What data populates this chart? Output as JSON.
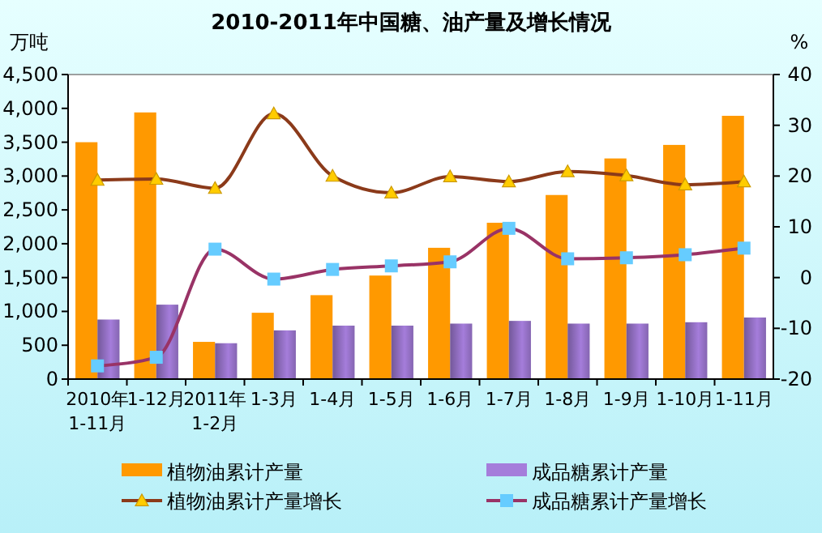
{
  "chart_data": {
    "type": "bar",
    "title": "2010-2011年中国糖、油产量及增长情况",
    "ylabel": "万吨",
    "y2label": "%",
    "categories": [
      "2010年1-11月",
      "1-12月",
      "2011年1-2月",
      "1-3月",
      "1-4月",
      "1-5月",
      "1-6月",
      "1-7月",
      "1-8月",
      "1-9月",
      "1-10月",
      "1-11月"
    ],
    "series": [
      {
        "name": "植物油累计产量",
        "color": "#ff9900",
        "values": [
          3500,
          3940,
          550,
          980,
          1240,
          1530,
          1940,
          2310,
          2720,
          3260,
          3460,
          3890
        ]
      },
      {
        "name": "成品糖累计产量",
        "color": "#a57ddb",
        "values": [
          880,
          1100,
          530,
          720,
          790,
          790,
          820,
          860,
          820,
          820,
          840,
          910
        ]
      },
      {
        "name": "植物油累计产量增长",
        "type": "line",
        "axis": "y2",
        "color": "#8b3a1a",
        "marker": "triangle",
        "values": [
          19.2,
          19.4,
          17.6,
          32.3,
          20.0,
          16.7,
          19.9,
          18.9,
          20.9,
          20.1,
          18.3,
          18.9
        ]
      },
      {
        "name": "成品糖累计产量增长",
        "type": "line",
        "axis": "y2",
        "color": "#993366",
        "marker": "square",
        "values": [
          -17.4,
          -15.7,
          5.6,
          -0.3,
          1.6,
          2.3,
          3.1,
          9.7,
          3.7,
          3.9,
          4.5,
          5.8
        ]
      }
    ],
    "ylim": [
      0,
      4500
    ],
    "yticks": [
      {
        "value": 0,
        "label": "0"
      },
      {
        "value": 500,
        "label": "500"
      },
      {
        "value": 1000,
        "label": "1,000"
      },
      {
        "value": 1500,
        "label": "1,500"
      },
      {
        "value": 2000,
        "label": "2,000"
      },
      {
        "value": 2500,
        "label": "2,500"
      },
      {
        "value": 3000,
        "label": "3,000"
      },
      {
        "value": 3500,
        "label": "3,500"
      },
      {
        "value": 4000,
        "label": "4,000"
      },
      {
        "value": 4500,
        "label": "4,500"
      }
    ],
    "y2lim": [
      -20,
      40
    ],
    "y2ticks": [
      -20,
      -10,
      0,
      10,
      20,
      30,
      40
    ],
    "grid": false,
    "legend": "bottom"
  }
}
